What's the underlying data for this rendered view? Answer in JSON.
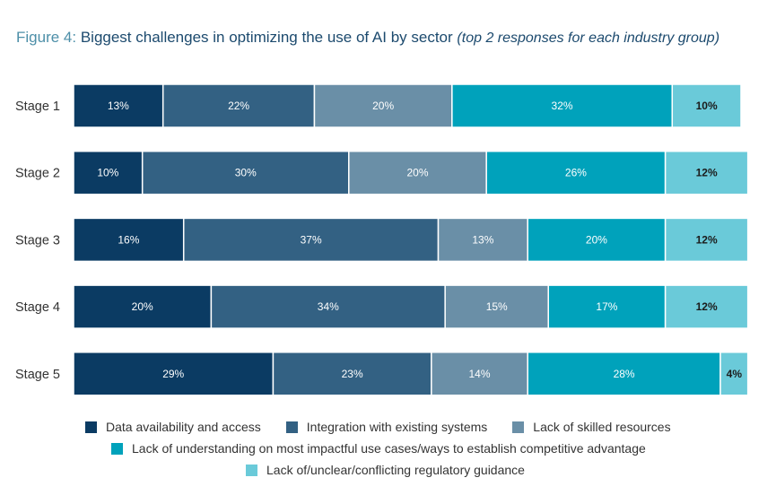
{
  "title": {
    "figure_label": "Figure 4:",
    "main": "Biggest challenges in optimizing the use of AI by sector",
    "note": "(top 2 responses for each industry group)"
  },
  "chart_data": {
    "type": "bar",
    "orientation": "horizontal",
    "stacked": true,
    "title": "Figure 4: Biggest challenges in optimizing the use of AI by sector (top 2 responses for each industry group)",
    "categories": [
      "Stage 1",
      "Stage 2",
      "Stage 3",
      "Stage 4",
      "Stage 5"
    ],
    "unit": "%",
    "series": [
      {
        "name": "Data availability and access",
        "color": "#0b3b63",
        "label_color": "#ffffff",
        "bold": false,
        "values": [
          13,
          10,
          16,
          20,
          29
        ]
      },
      {
        "name": "Integration with existing systems",
        "color": "#336183",
        "label_color": "#ffffff",
        "bold": false,
        "values": [
          22,
          30,
          37,
          34,
          23
        ]
      },
      {
        "name": "Lack of skilled resources",
        "color": "#6a8fa7",
        "label_color": "#ffffff",
        "bold": false,
        "values": [
          20,
          20,
          13,
          15,
          14
        ]
      },
      {
        "name": "Lack of understanding on most impactful use cases/ways to establish competitive advantage",
        "color": "#00a2bb",
        "label_color": "#ffffff",
        "bold": false,
        "values": [
          32,
          26,
          20,
          17,
          28
        ]
      },
      {
        "name": "Lack of/unclear/conflicting regulatory guidance",
        "color": "#6acad9",
        "label_color": "#1b1b1b",
        "bold": true,
        "values": [
          10,
          12,
          12,
          12,
          4
        ]
      }
    ],
    "xlim": [
      0,
      100
    ],
    "legend_position": "bottom",
    "grid": false
  }
}
